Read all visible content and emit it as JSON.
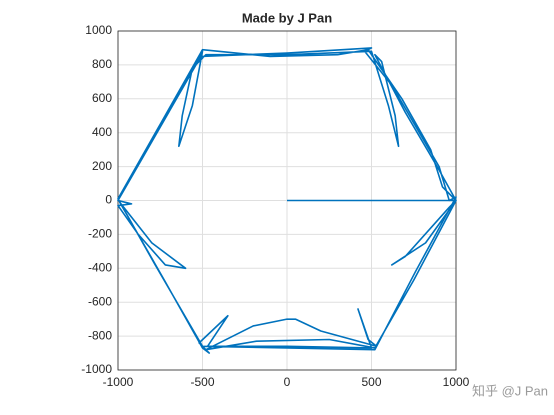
{
  "chart_data": {
    "type": "line",
    "title": "Made by J Pan",
    "watermark": "知乎 @J Pan",
    "color": "#0072bd",
    "grid": true,
    "xlim": [
      -1000,
      1000
    ],
    "ylim": [
      -1000,
      1000
    ],
    "xticks": [
      -1000,
      -500,
      0,
      500,
      1000
    ],
    "yticks": [
      -1000,
      -800,
      -600,
      -400,
      -200,
      0,
      200,
      400,
      600,
      800,
      1000
    ],
    "x": [
      0,
      1000,
      900,
      700,
      520,
      560,
      640,
      660,
      600,
      500,
      0,
      -480,
      -560,
      -620,
      -640,
      -560,
      -500,
      -700,
      -1000,
      -920,
      -1000,
      -880,
      -720,
      -600,
      -800,
      -990,
      -720,
      -500,
      -460,
      -520,
      -350,
      -470,
      0,
      500,
      420,
      480,
      530,
      200,
      50,
      0,
      -200,
      -480,
      -180,
      250,
      520,
      750,
      1000,
      820,
      620,
      700,
      960,
      1000,
      920,
      850,
      680,
      480,
      300,
      -100,
      -500,
      -750,
      -1000,
      -780,
      -500,
      0,
      520,
      760,
      1000,
      960,
      900,
      620,
      460,
      500,
      0,
      -510,
      -1000
    ],
    "values": [
      0,
      0,
      180,
      520,
      860,
      820,
      500,
      320,
      560,
      880,
      860,
      860,
      780,
      500,
      320,
      560,
      880,
      520,
      0,
      -20,
      -30,
      -200,
      -380,
      -400,
      -250,
      -10,
      -480,
      -870,
      -900,
      -840,
      -680,
      -860,
      -860,
      -870,
      -640,
      -820,
      -860,
      -770,
      -700,
      -700,
      -740,
      -880,
      -830,
      -820,
      -870,
      -470,
      0,
      -250,
      -380,
      -330,
      -40,
      0,
      80,
      300,
      600,
      890,
      860,
      850,
      890,
      450,
      10,
      -380,
      -860,
      -870,
      -880,
      -420,
      20,
      0,
      200,
      680,
      880,
      900,
      870,
      850,
      0
    ]
  }
}
